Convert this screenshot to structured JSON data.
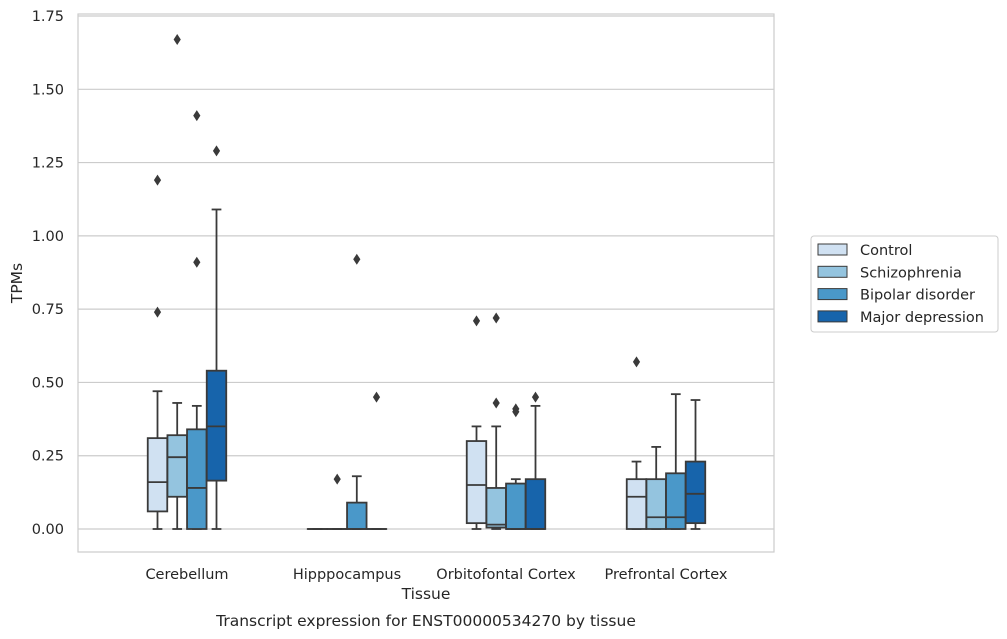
{
  "chart_data": {
    "type": "box",
    "xlabel": "Tissue",
    "ylabel": "TPMs",
    "caption": "Transcript expression for ENST00000534270 by tissue",
    "ylim": [
      -0.08,
      1.76
    ],
    "yticks": [
      "0.00",
      "0.25",
      "0.50",
      "0.75",
      "1.00",
      "1.25",
      "1.50",
      "1.75"
    ],
    "ytick_values": [
      0,
      0.25,
      0.5,
      0.75,
      1.0,
      1.25,
      1.5,
      1.75
    ],
    "grid": true,
    "legend_position": "right",
    "categories": [
      "Cerebellum",
      "Hipppocampus",
      "Orbitofontal Cortex",
      "Prefrontal Cortex"
    ],
    "series": [
      {
        "name": "Control",
        "color": "#d0e1f2",
        "boxes": [
          {
            "whislo": 0.0,
            "q1": 0.06,
            "med": 0.16,
            "q3": 0.31,
            "whishi": 0.47,
            "fliers": [
              0.74,
              1.19
            ]
          },
          {
            "whislo": 0.0,
            "q1": 0.0,
            "med": 0.0,
            "q3": 0.0,
            "whishi": 0.0,
            "fliers": []
          },
          {
            "whislo": 0.0,
            "q1": 0.02,
            "med": 0.15,
            "q3": 0.3,
            "whishi": 0.35,
            "fliers": [
              0.71
            ]
          },
          {
            "whislo": 0.0,
            "q1": 0.0,
            "med": 0.11,
            "q3": 0.17,
            "whishi": 0.23,
            "fliers": [
              0.57
            ]
          }
        ]
      },
      {
        "name": "Schizophrenia",
        "color": "#94c4df",
        "boxes": [
          {
            "whislo": 0.0,
            "q1": 0.11,
            "med": 0.245,
            "q3": 0.32,
            "whishi": 0.43,
            "fliers": [
              1.67
            ]
          },
          {
            "whislo": 0.0,
            "q1": 0.0,
            "med": 0.0,
            "q3": 0.0,
            "whishi": 0.0,
            "fliers": [
              0.17
            ]
          },
          {
            "whislo": 0.0,
            "q1": 0.005,
            "med": 0.015,
            "q3": 0.14,
            "whishi": 0.35,
            "fliers": [
              0.43,
              0.72
            ]
          },
          {
            "whislo": 0.0,
            "q1": 0.0,
            "med": 0.04,
            "q3": 0.17,
            "whishi": 0.28,
            "fliers": []
          }
        ]
      },
      {
        "name": "Bipolar disorder",
        "color": "#4a98c9",
        "boxes": [
          {
            "whislo": 0.0,
            "q1": 0.0,
            "med": 0.14,
            "q3": 0.34,
            "whishi": 0.42,
            "fliers": [
              0.91,
              1.41
            ]
          },
          {
            "whislo": 0.0,
            "q1": 0.0,
            "med": 0.0,
            "q3": 0.09,
            "whishi": 0.18,
            "fliers": [
              0.92
            ]
          },
          {
            "whislo": 0.0,
            "q1": 0.0,
            "med": 0.0,
            "q3": 0.155,
            "whishi": 0.17,
            "fliers": [
              0.4,
              0.41
            ]
          },
          {
            "whislo": 0.0,
            "q1": 0.0,
            "med": 0.04,
            "q3": 0.19,
            "whishi": 0.46,
            "fliers": []
          }
        ]
      },
      {
        "name": "Major depression",
        "color": "#1764ab",
        "boxes": [
          {
            "whislo": 0.0,
            "q1": 0.165,
            "med": 0.35,
            "q3": 0.54,
            "whishi": 1.09,
            "fliers": [
              1.29
            ]
          },
          {
            "whislo": 0.0,
            "q1": 0.0,
            "med": 0.0,
            "q3": 0.0,
            "whishi": 0.0,
            "fliers": [
              0.45
            ]
          },
          {
            "whislo": 0.0,
            "q1": 0.0,
            "med": 0.0,
            "q3": 0.17,
            "whishi": 0.42,
            "fliers": [
              0.45
            ]
          },
          {
            "whislo": 0.0,
            "q1": 0.02,
            "med": 0.12,
            "q3": 0.23,
            "whishi": 0.44,
            "fliers": []
          }
        ]
      }
    ]
  }
}
